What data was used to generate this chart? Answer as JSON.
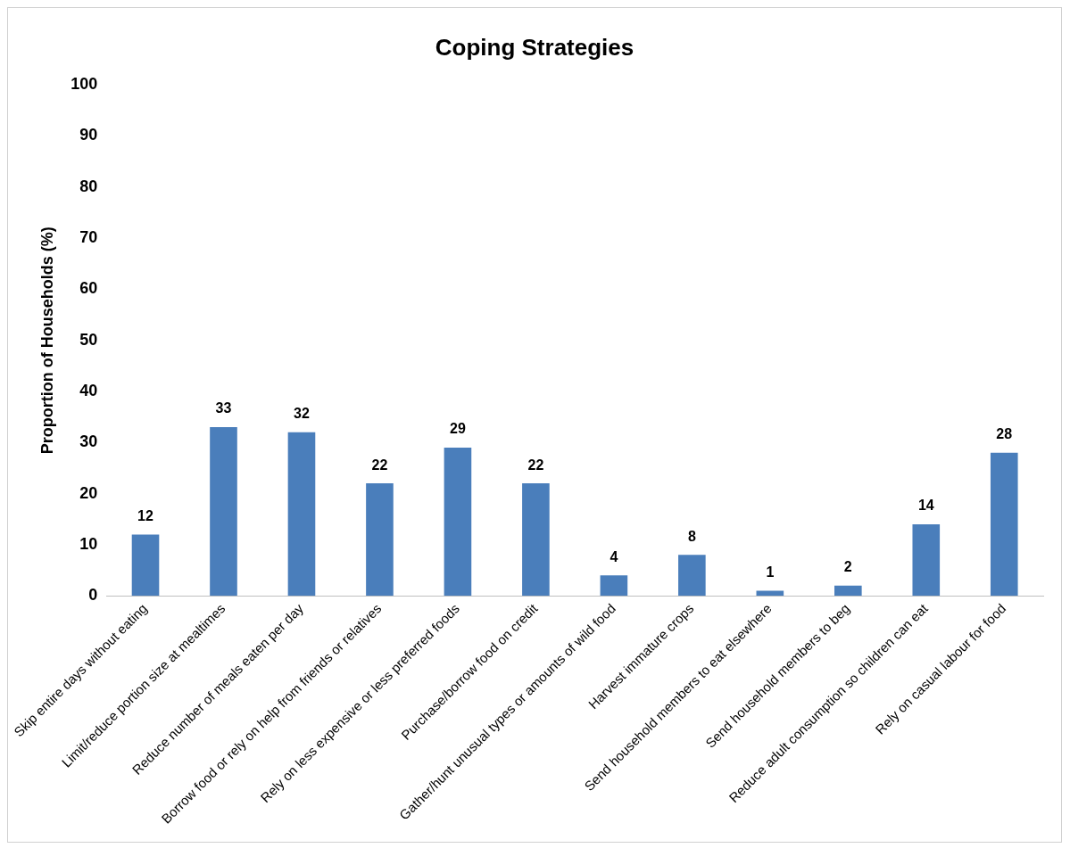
{
  "chart_data": {
    "type": "bar",
    "title": "Coping Strategies",
    "ylabel": "Proportion of Households (%)",
    "categories": [
      "Skip entire days without eating",
      "Limit/reduce portion size at mealtimes",
      "Reduce number of meals eaten per day",
      "Borrow food or rely on help from friends or relatives",
      "Rely on less expensive or less preferred foods",
      "Purchase/borrow food on credit",
      "Gather/hunt unusual types or amounts of wild food",
      "Harvest immature crops",
      "Send household members to eat elsewhere",
      "Send household members to beg",
      "Reduce adult consumption so children can eat",
      "Rely on casual labour for food"
    ],
    "values": [
      12,
      33,
      32,
      22,
      29,
      22,
      4,
      8,
      1,
      2,
      14,
      28
    ],
    "color": "#4a7ebb",
    "ylim": [
      0,
      100
    ],
    "yticks": [
      0,
      10,
      20,
      30,
      40,
      50,
      60,
      70,
      80,
      90,
      100
    ],
    "grid": false,
    "legend": false,
    "data_labels": true
  }
}
